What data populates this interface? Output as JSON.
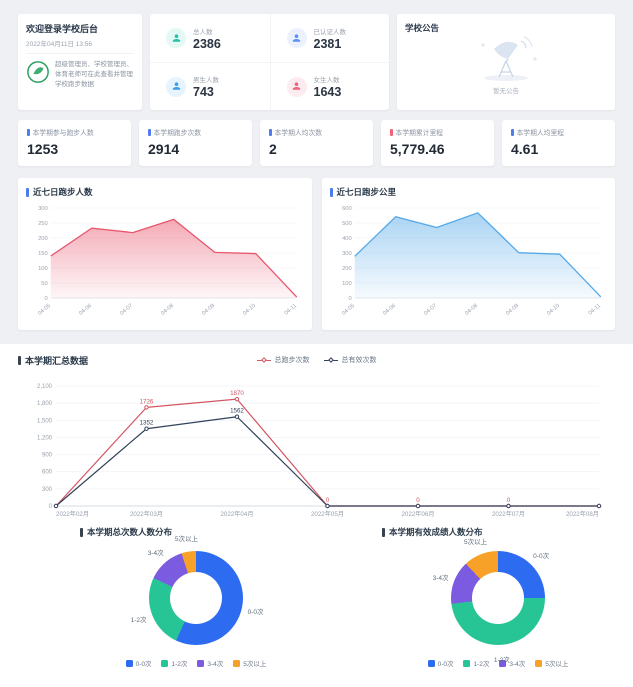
{
  "welcome": {
    "title": "欢迎登录学校后台",
    "date": "2022年04月11日 13:56",
    "note": "超级管理员、学校管理员、体育老师可在此查看并管理学校跑步数据"
  },
  "stats_overview": {
    "items": [
      {
        "label": "总人数",
        "value": "2386",
        "color": "#22c3a6"
      },
      {
        "label": "已认证人数",
        "value": "2381",
        "color": "#5b8ff9"
      },
      {
        "label": "男生人数",
        "value": "743",
        "color": "#3a9ff0"
      },
      {
        "label": "女生人数",
        "value": "1643",
        "color": "#f2637b"
      }
    ]
  },
  "announcement": {
    "title": "学校公告",
    "empty_text": "暂无公告"
  },
  "metric_cards": [
    {
      "label": "本学期参与跑步人数",
      "value": "1253",
      "accent": "#4e7cf0"
    },
    {
      "label": "本学期跑步次数",
      "value": "2914",
      "accent": "#4e7cf0"
    },
    {
      "label": "本学期人均次数",
      "value": "2",
      "accent": "#4e7cf0"
    },
    {
      "label": "本学期累计里程",
      "value": "5,779.46",
      "accent": "#f2637b"
    },
    {
      "label": "本学期人均里程",
      "value": "4.61",
      "accent": "#4e7cf0"
    }
  ],
  "chart_data": [
    {
      "type": "area",
      "title": "近七日跑步人数",
      "x": [
        "04-05",
        "04-06",
        "04-07",
        "04-08",
        "04-09",
        "04-10",
        "04-11"
      ],
      "values": [
        140,
        233,
        218,
        262,
        152,
        148,
        3
      ],
      "ylim": [
        0,
        300
      ],
      "ytick": 50,
      "color": "#e8556d",
      "grid": true,
      "xlabel": "",
      "ylabel": ""
    },
    {
      "type": "area",
      "title": "近七日跑步公里",
      "x": [
        "04-05",
        "04-06",
        "04-07",
        "04-08",
        "04-09",
        "04-10",
        "04-11"
      ],
      "values": [
        278,
        542,
        470,
        568,
        302,
        292,
        8
      ],
      "ylim": [
        0,
        600
      ],
      "ytick": 100,
      "color": "#54a8e8",
      "grid": true,
      "xlabel": "",
      "ylabel": ""
    },
    {
      "type": "line",
      "title": "本学期汇总数据",
      "categories": [
        "2022年02月",
        "2022年03月",
        "2022年04月",
        "2022年05月",
        "2022年06月",
        "2022年07月",
        "2022年08月"
      ],
      "series": [
        {
          "name": "总跑步次数",
          "color": "#d35662",
          "values": [
            0,
            1726,
            1870,
            0,
            0,
            0,
            0
          ],
          "point_labels": [
            "",
            "1726",
            "1870",
            "0",
            "0",
            "0",
            ""
          ]
        },
        {
          "name": "总有效次数",
          "color": "#33425b",
          "values": [
            0,
            1352,
            1562,
            0,
            0,
            0,
            0
          ],
          "point_labels": [
            "",
            "1352",
            "1562",
            "",
            "",
            "",
            ""
          ]
        }
      ],
      "ylim": [
        0,
        2100
      ],
      "ytick": 300,
      "legend_position": "top-center",
      "grid": true
    },
    {
      "type": "pie",
      "title": "本学期总次数人数分布",
      "donut": true,
      "slices": [
        {
          "label": "0-0次",
          "percent": 57,
          "color": "#2d6cf0"
        },
        {
          "label": "1-2次",
          "percent": 25,
          "color": "#27c496"
        },
        {
          "label": "3-4次",
          "percent": 13,
          "color": "#7b5be0"
        },
        {
          "label": "5次以上",
          "percent": 5,
          "color": "#f7a128"
        }
      ]
    },
    {
      "type": "pie",
      "title": "本学期有效成绩人数分布",
      "donut": true,
      "slices": [
        {
          "label": "0-0次",
          "percent": 25,
          "color": "#2d6cf0"
        },
        {
          "label": "1-2次",
          "percent": 48,
          "color": "#27c496"
        },
        {
          "label": "3-4次",
          "percent": 15,
          "color": "#7b5be0"
        },
        {
          "label": "5次以上",
          "percent": 12,
          "color": "#f7a128"
        }
      ]
    }
  ]
}
